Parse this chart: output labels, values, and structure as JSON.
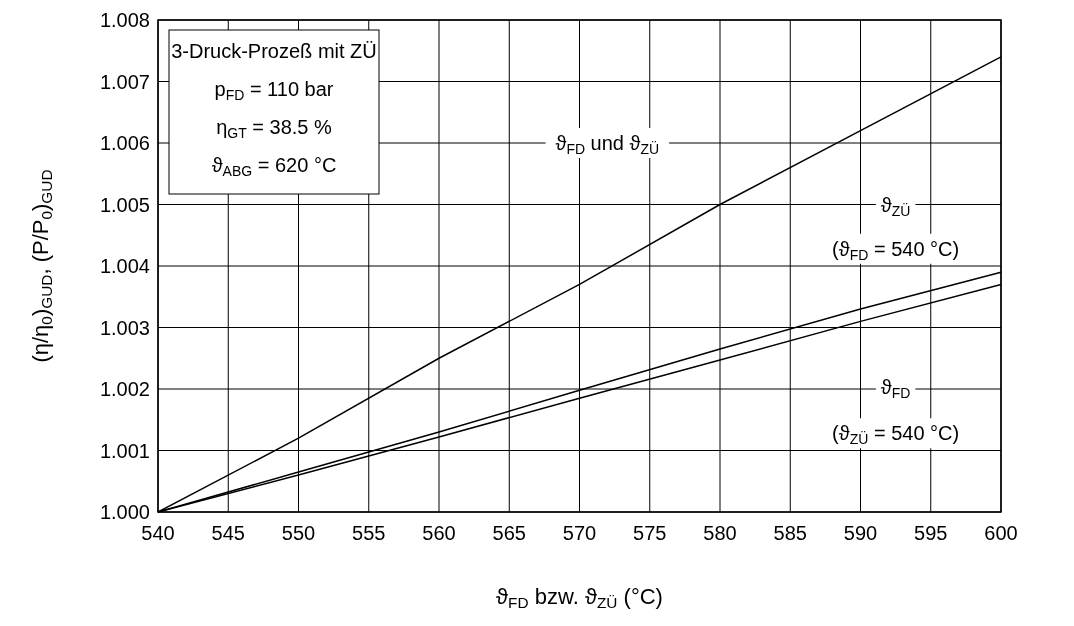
{
  "chart_data": {
    "type": "line",
    "xlabel": "ϑ$_{FD}$ bzw. ϑ$_{ZÜ}$ (°C)",
    "ylabel": "(η/η$_{0}$)$_{GUD}$, (P/P$_{0}$)$_{GUD}$",
    "x": [
      540,
      550,
      560,
      570,
      580,
      590,
      600
    ],
    "series": [
      {
        "color": "#000000",
        "values": [
          1.0,
          1.0012,
          1.0025,
          1.0037,
          1.005,
          1.0062,
          1.0074
        ]
      },
      {
        "color": "#000000",
        "values": [
          1.0,
          1.00065,
          1.0013,
          1.00198,
          1.00265,
          1.0033,
          1.0039
        ]
      },
      {
        "color": "#000000",
        "values": [
          1.0,
          1.0006,
          1.00122,
          1.00185,
          1.00247,
          1.0031,
          1.0037
        ]
      }
    ],
    "xlim": [
      540,
      600
    ],
    "xticks": [
      540,
      545,
      550,
      555,
      560,
      565,
      570,
      575,
      580,
      585,
      590,
      595,
      600
    ],
    "ylim": [
      1.0,
      1.008
    ],
    "yticks": [
      {
        "value": 1.0,
        "label": "1.000"
      },
      {
        "value": 1.001,
        "label": "1.001"
      },
      {
        "value": 1.002,
        "label": "1.002"
      },
      {
        "value": 1.003,
        "label": "1.003"
      },
      {
        "value": 1.004,
        "label": "1.004"
      },
      {
        "value": 1.005,
        "label": "1.005"
      },
      {
        "value": 1.006,
        "label": "1.006"
      },
      {
        "value": 1.007,
        "label": "1.007"
      },
      {
        "value": 1.008,
        "label": "1.008"
      }
    ],
    "grid": true,
    "marker": "none",
    "line_style": "solid",
    "annotations": [
      "3-Druck-Prozeß mit ZÜ",
      "p$_{FD}$ = 110 bar",
      "η$_{GT}$ = 38.5 %",
      "ϑ$_{ABG}$ = 620 °C",
      "ϑ$_{FD}$ und ϑ$_{ZÜ}$",
      "ϑ$_{ZÜ}$",
      "(ϑ$_{FD}$ = 540 °C)",
      "ϑ$_{FD}$",
      "(ϑ$_{ZÜ}$ = 540 °C)"
    ]
  }
}
